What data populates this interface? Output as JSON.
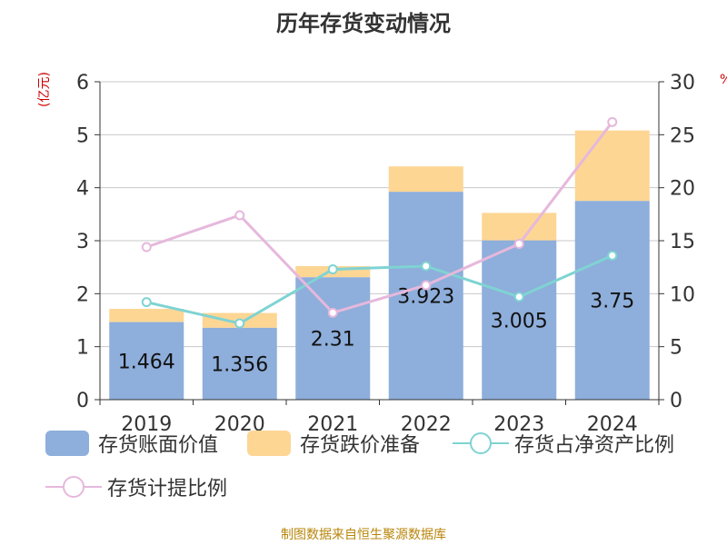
{
  "title": "历年存货变动情况",
  "left_unit": "(亿元)",
  "right_unit": "%",
  "source": "制图数据来自恒生聚源数据库",
  "colors": {
    "book_value": "#8eaedb",
    "impairment": "#fdd694",
    "net_asset_ratio": "#7fd3d3",
    "provision_ratio": "#e6b8dc"
  },
  "legend": [
    {
      "key": "book_value",
      "label": "存货账面价值",
      "kind": "bar"
    },
    {
      "key": "impairment",
      "label": "存货跌价准备",
      "kind": "bar"
    },
    {
      "key": "net_asset_ratio",
      "label": "存货占净资产比例",
      "kind": "line"
    },
    {
      "key": "provision_ratio",
      "label": "存货计提比例",
      "kind": "line"
    }
  ],
  "chart_data": {
    "type": "bar",
    "title": "历年存货变动情况",
    "categories": [
      "2019",
      "2020",
      "2021",
      "2022",
      "2023",
      "2024"
    ],
    "y_left": {
      "label": "(亿元)",
      "min": 0,
      "max": 6,
      "ticks": [
        "0",
        "1",
        "2",
        "3",
        "4",
        "5",
        "6"
      ]
    },
    "y_right": {
      "label": "%",
      "min": 0,
      "max": 30,
      "ticks": [
        "0",
        "5",
        "10",
        "15",
        "20",
        "25",
        "30"
      ]
    },
    "grid": true,
    "legend_position": "bottom",
    "stacked_bars": [
      {
        "name": "存货账面价值",
        "axis": "left",
        "values": [
          1.464,
          1.356,
          2.31,
          3.923,
          3.005,
          3.75
        ],
        "labels": [
          "1.464",
          "1.356",
          "2.31",
          "3.923",
          "3.005",
          "3.75"
        ]
      },
      {
        "name": "存货跌价准备",
        "axis": "left",
        "values": [
          0.25,
          0.28,
          0.21,
          0.48,
          0.52,
          1.33
        ]
      }
    ],
    "lines": [
      {
        "name": "存货占净资产比例",
        "axis": "right",
        "values": [
          9.2,
          7.2,
          12.3,
          12.6,
          9.7,
          13.6
        ]
      },
      {
        "name": "存货计提比例",
        "axis": "right",
        "values": [
          14.4,
          17.4,
          8.2,
          10.8,
          14.7,
          26.2
        ]
      }
    ]
  }
}
